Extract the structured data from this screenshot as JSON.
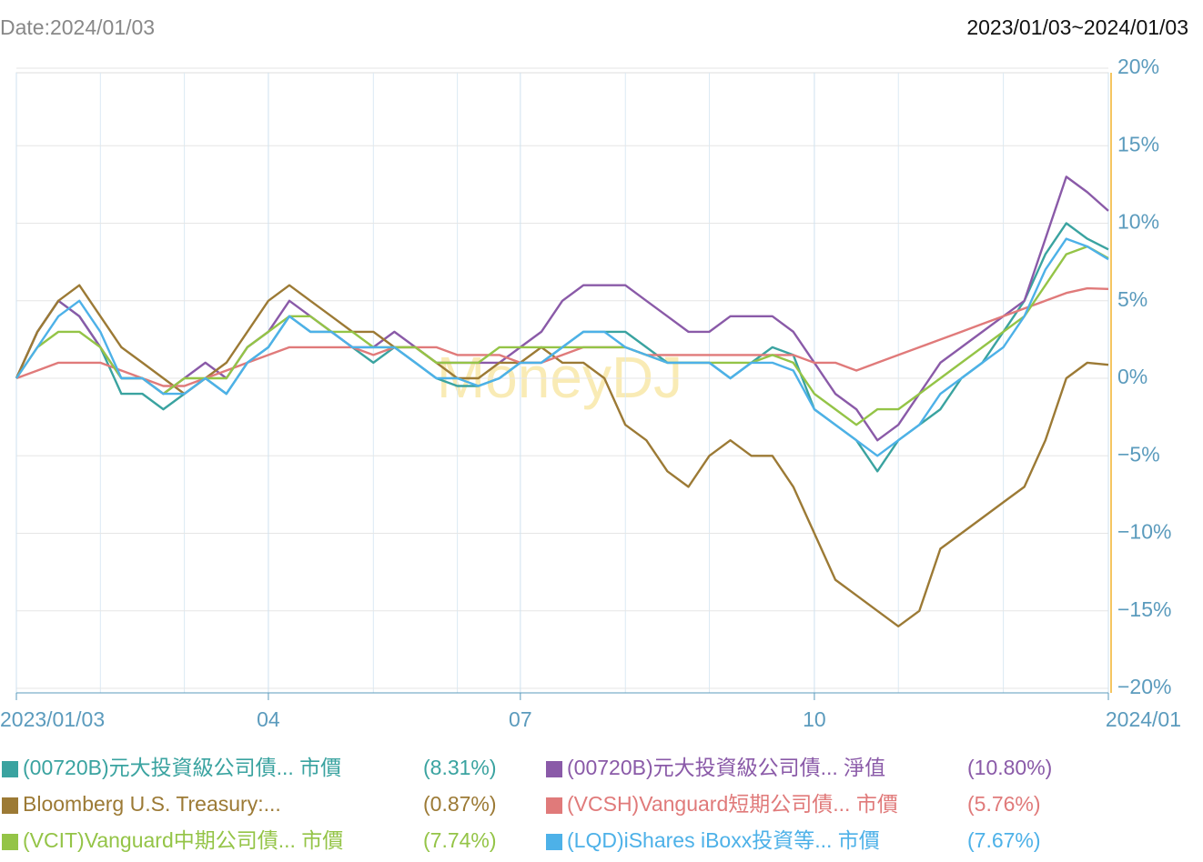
{
  "header": {
    "date": "Date:2024/01/03",
    "range": "2023/01/03~2024/01/03"
  },
  "watermark": "MoneyDJ",
  "chart_data": {
    "type": "line",
    "categories": [
      "2023/01/03",
      null,
      null,
      null,
      null,
      null,
      null,
      null,
      null,
      null,
      null,
      null,
      "04",
      null,
      null,
      null,
      null,
      null,
      null,
      null,
      null,
      null,
      null,
      null,
      "07",
      null,
      null,
      null,
      null,
      null,
      null,
      null,
      null,
      null,
      null,
      null,
      null,
      null,
      "10",
      null,
      null,
      null,
      null,
      null,
      null,
      null,
      null,
      null,
      null,
      null,
      null,
      null,
      "2024/01"
    ],
    "ylim": [
      -20,
      20
    ],
    "yticks": [
      {
        "value": -20,
        "label": "−20%"
      },
      {
        "value": -15,
        "label": "−15%"
      },
      {
        "value": -10,
        "label": "−10%"
      },
      {
        "value": -5,
        "label": "−5%"
      },
      {
        "value": 0,
        "label": "0%"
      },
      {
        "value": 5,
        "label": "5%"
      },
      {
        "value": 10,
        "label": "10%"
      },
      {
        "value": 15,
        "label": "15%"
      },
      {
        "value": 20,
        "label": "20%"
      }
    ],
    "grid": true,
    "series": [
      {
        "name": "(00720B)元大投資級公司債... 市價",
        "legend_label": "(8.31%)",
        "color": "#3aa3a0",
        "values": [
          0,
          3,
          5,
          4,
          2,
          -1,
          -1,
          -2,
          -1,
          0,
          -1,
          1,
          2,
          4,
          3,
          3,
          2,
          1,
          2,
          1,
          0,
          -0.5,
          -0.5,
          0,
          1,
          1,
          2,
          3,
          3,
          3,
          2,
          1,
          1,
          1,
          0,
          1,
          2,
          1.5,
          -2,
          -3,
          -4,
          -6,
          -4,
          -3,
          -2,
          0,
          1,
          3,
          5,
          8,
          10,
          9,
          8.31
        ]
      },
      {
        "name": "(00720B)元大投資級公司債... 淨值",
        "legend_label": "(10.80%)",
        "color": "#8a5aa8",
        "values": [
          0,
          3,
          5,
          4,
          2,
          0,
          0,
          -1,
          0,
          1,
          0,
          2,
          3,
          5,
          4,
          3,
          2,
          2,
          3,
          2,
          1,
          1,
          1,
          1,
          2,
          3,
          5,
          6,
          6,
          6,
          5,
          4,
          3,
          3,
          4,
          4,
          4,
          3,
          1,
          -1,
          -2,
          -4,
          -3,
          -1,
          1,
          2,
          3,
          4,
          5,
          9,
          13,
          12,
          10.8
        ]
      },
      {
        "name": "Bloomberg U.S. Treasury:...",
        "legend_label": "(0.87%)",
        "color": "#9c7a35",
        "values": [
          0,
          3,
          5,
          6,
          4,
          2,
          1,
          0,
          -1,
          0,
          1,
          3,
          5,
          6,
          5,
          4,
          3,
          3,
          2,
          2,
          1,
          0,
          0,
          1,
          1,
          2,
          1,
          1,
          0,
          -3,
          -4,
          -6,
          -7,
          -5,
          -4,
          -5,
          -5,
          -7,
          -10,
          -13,
          -14,
          -15,
          -16,
          -15,
          -11,
          -10,
          -9,
          -8,
          -7,
          -4,
          0,
          1,
          0.87
        ]
      },
      {
        "name": "(VCSH)Vanguard短期公司債... 市價",
        "legend_label": "(5.76%)",
        "color": "#e07a7a",
        "values": [
          0,
          0.5,
          1,
          1,
          1,
          0.5,
          0,
          -0.5,
          -0.5,
          0,
          0.5,
          1,
          1.5,
          2,
          2,
          2,
          2,
          1.5,
          2,
          2,
          2,
          1.5,
          1.5,
          1.5,
          1,
          1,
          1.5,
          2,
          2,
          2,
          1.5,
          1.5,
          1.5,
          1.5,
          1.5,
          1.5,
          1.5,
          1.5,
          1,
          1,
          0.5,
          1,
          1.5,
          2,
          2.5,
          3,
          3.5,
          4,
          4.5,
          5,
          5.5,
          5.8,
          5.76
        ]
      },
      {
        "name": "(VCIT)Vanguard中期公司債... 市價",
        "legend_label": "(7.74%)",
        "color": "#94c447",
        "values": [
          0,
          2,
          3,
          3,
          2,
          0,
          0,
          -1,
          0,
          0,
          0,
          2,
          3,
          4,
          4,
          3,
          3,
          2,
          2,
          2,
          1,
          1,
          1,
          2,
          2,
          2,
          2,
          2,
          2,
          2,
          1.5,
          1,
          1,
          1,
          1,
          1,
          1.5,
          1,
          -1,
          -2,
          -3,
          -2,
          -2,
          -1,
          0,
          1,
          2,
          3,
          4,
          6,
          8,
          8.5,
          7.74
        ]
      },
      {
        "name": "(LQD)iShares iBoxx投資等... 市價",
        "legend_label": "(7.67%)",
        "color": "#4db1e8",
        "values": [
          0,
          2,
          4,
          5,
          3,
          0,
          0,
          -1,
          -1,
          0,
          -1,
          1,
          2,
          4,
          3,
          3,
          2,
          2,
          2,
          1,
          0,
          0,
          -0.5,
          0,
          1,
          1,
          2,
          3,
          3,
          2,
          1.5,
          1,
          1,
          1,
          0,
          1,
          1,
          0.5,
          -2,
          -3,
          -4,
          -5,
          -4,
          -3,
          -1,
          0,
          1,
          2,
          4,
          7,
          9,
          8.5,
          7.67
        ]
      }
    ]
  }
}
